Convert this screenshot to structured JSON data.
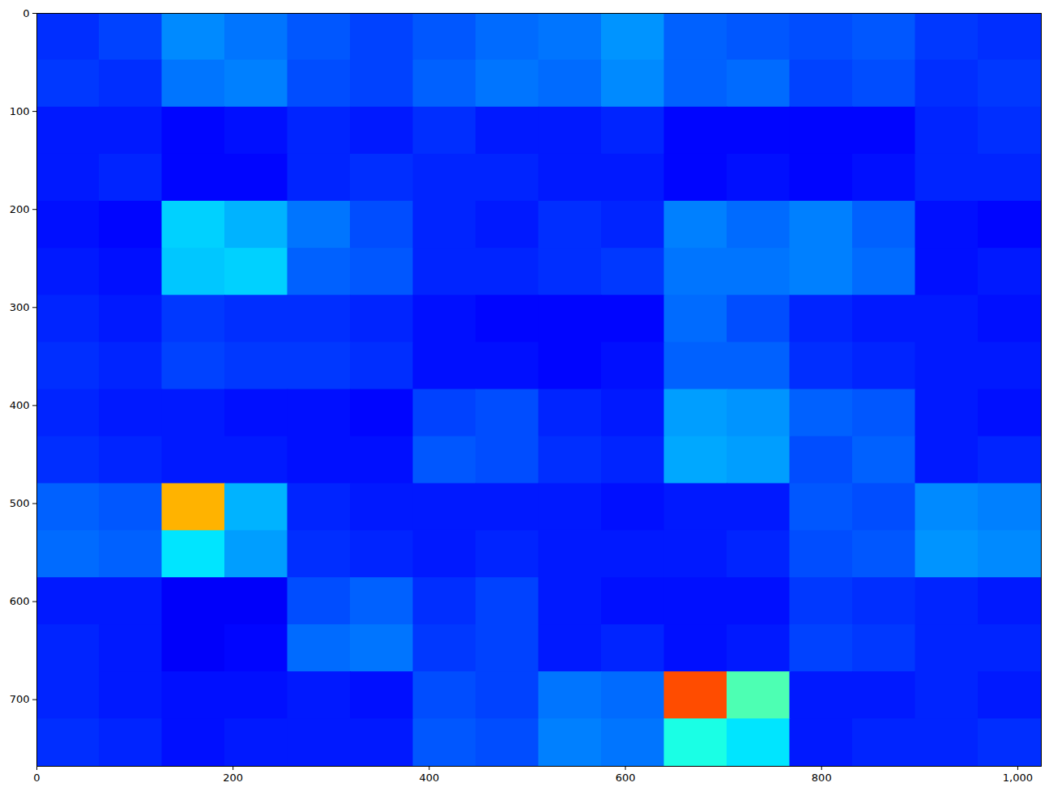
{
  "chart_data": {
    "type": "heatmap",
    "xlim": [
      0,
      1024
    ],
    "ylim": [
      768,
      0
    ],
    "xticks": [
      0,
      200,
      400,
      600,
      800,
      1000
    ],
    "yticks": [
      0,
      100,
      200,
      300,
      400,
      500,
      600,
      700
    ],
    "clim": [
      0,
      1
    ],
    "cells": [
      [
        0.17,
        0.19,
        0.26,
        0.24,
        0.21,
        0.19,
        0.21,
        0.23,
        0.24,
        0.27,
        0.22,
        0.21,
        0.2,
        0.21,
        0.18,
        0.17
      ],
      [
        0.18,
        0.17,
        0.24,
        0.25,
        0.2,
        0.19,
        0.22,
        0.24,
        0.23,
        0.26,
        0.22,
        0.23,
        0.19,
        0.2,
        0.17,
        0.18
      ],
      [
        0.15,
        0.15,
        0.13,
        0.14,
        0.16,
        0.15,
        0.17,
        0.15,
        0.15,
        0.16,
        0.13,
        0.13,
        0.13,
        0.13,
        0.16,
        0.17
      ],
      [
        0.15,
        0.16,
        0.13,
        0.13,
        0.16,
        0.17,
        0.16,
        0.16,
        0.15,
        0.15,
        0.13,
        0.14,
        0.13,
        0.14,
        0.16,
        0.16
      ],
      [
        0.14,
        0.13,
        0.33,
        0.3,
        0.24,
        0.2,
        0.16,
        0.15,
        0.17,
        0.16,
        0.25,
        0.23,
        0.25,
        0.22,
        0.14,
        0.13
      ],
      [
        0.15,
        0.14,
        0.32,
        0.33,
        0.22,
        0.21,
        0.16,
        0.16,
        0.17,
        0.18,
        0.24,
        0.24,
        0.25,
        0.23,
        0.14,
        0.15
      ],
      [
        0.16,
        0.15,
        0.18,
        0.17,
        0.17,
        0.16,
        0.14,
        0.13,
        0.13,
        0.13,
        0.23,
        0.2,
        0.16,
        0.15,
        0.15,
        0.14
      ],
      [
        0.17,
        0.16,
        0.19,
        0.18,
        0.18,
        0.17,
        0.14,
        0.14,
        0.13,
        0.14,
        0.22,
        0.22,
        0.17,
        0.16,
        0.15,
        0.15
      ],
      [
        0.16,
        0.15,
        0.15,
        0.14,
        0.14,
        0.13,
        0.19,
        0.2,
        0.16,
        0.15,
        0.28,
        0.27,
        0.22,
        0.21,
        0.15,
        0.14
      ],
      [
        0.17,
        0.16,
        0.15,
        0.15,
        0.14,
        0.14,
        0.21,
        0.2,
        0.17,
        0.16,
        0.29,
        0.28,
        0.2,
        0.22,
        0.15,
        0.16
      ],
      [
        0.22,
        0.21,
        0.7,
        0.3,
        0.16,
        0.15,
        0.15,
        0.15,
        0.15,
        0.14,
        0.15,
        0.15,
        0.21,
        0.2,
        0.26,
        0.25
      ],
      [
        0.23,
        0.22,
        0.35,
        0.28,
        0.17,
        0.16,
        0.15,
        0.16,
        0.15,
        0.15,
        0.15,
        0.16,
        0.2,
        0.21,
        0.27,
        0.26
      ],
      [
        0.15,
        0.15,
        0.12,
        0.12,
        0.2,
        0.22,
        0.17,
        0.19,
        0.15,
        0.14,
        0.14,
        0.14,
        0.18,
        0.17,
        0.16,
        0.15
      ],
      [
        0.16,
        0.15,
        0.12,
        0.13,
        0.23,
        0.24,
        0.18,
        0.19,
        0.15,
        0.16,
        0.14,
        0.15,
        0.19,
        0.18,
        0.16,
        0.16
      ],
      [
        0.16,
        0.15,
        0.14,
        0.14,
        0.15,
        0.14,
        0.2,
        0.19,
        0.24,
        0.23,
        0.8,
        0.45,
        0.15,
        0.15,
        0.16,
        0.15
      ],
      [
        0.17,
        0.16,
        0.14,
        0.15,
        0.15,
        0.15,
        0.21,
        0.2,
        0.25,
        0.24,
        0.4,
        0.35,
        0.15,
        0.16,
        0.16,
        0.17
      ]
    ]
  }
}
